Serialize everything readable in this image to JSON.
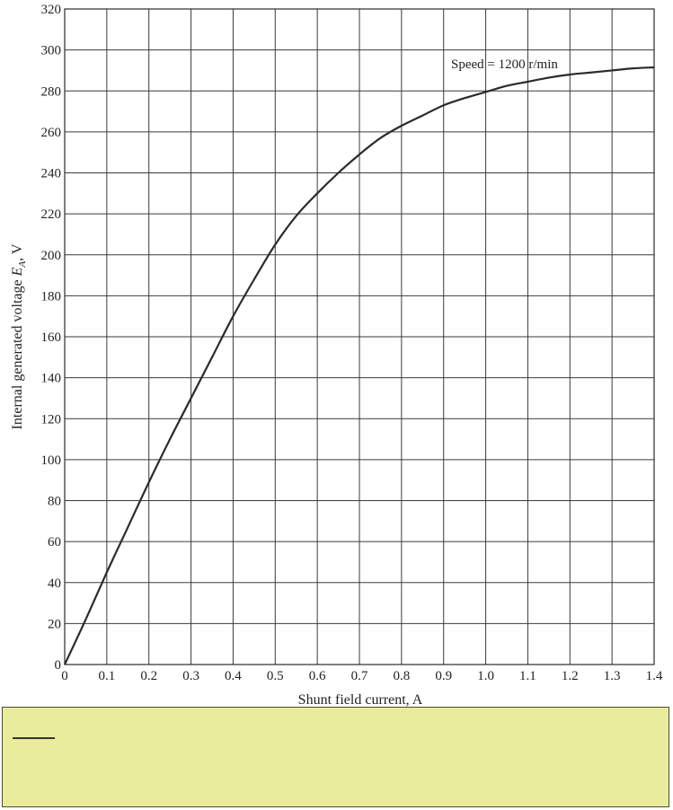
{
  "chart_data": {
    "type": "line",
    "title": "",
    "xlabel": "Shunt field current, A",
    "ylabel_prefix": "Internal generated voltage ",
    "ylabel_symbol": "E",
    "ylabel_subscript": "A",
    "ylabel_suffix": ", V",
    "xlim": [
      0,
      1.4
    ],
    "ylim": [
      0,
      320
    ],
    "x_ticks": [
      0,
      0.1,
      0.2,
      0.3,
      0.4,
      0.5,
      0.6,
      0.7,
      0.8,
      0.9,
      1.0,
      1.1,
      1.2,
      1.3,
      1.4
    ],
    "x_tick_labels": [
      "0",
      "0.1",
      "0.2",
      "0.3",
      "0.4",
      "0.5",
      "0.6",
      "0.7",
      "0.8",
      "0.9",
      "1.0",
      "1.1",
      "1.2",
      "1.3",
      "1.4"
    ],
    "y_ticks": [
      0,
      20,
      40,
      60,
      80,
      100,
      120,
      140,
      160,
      180,
      200,
      220,
      240,
      260,
      280,
      300,
      320
    ],
    "y_tick_labels": [
      "0",
      "20",
      "40",
      "60",
      "80",
      "100",
      "120",
      "140",
      "160",
      "180",
      "200",
      "220",
      "240",
      "260",
      "280",
      "300",
      "320"
    ],
    "grid": true,
    "legend": "none",
    "annotation": "Speed = 1200 r/min",
    "line_color": "#2b2b2b",
    "series": [
      {
        "x": [
          0,
          0.05,
          0.1,
          0.15,
          0.2,
          0.25,
          0.3,
          0.35,
          0.4,
          0.45,
          0.5,
          0.55,
          0.6,
          0.65,
          0.7,
          0.75,
          0.8,
          0.85,
          0.9,
          0.95,
          1.0,
          1.05,
          1.1,
          1.15,
          1.2,
          1.25,
          1.3,
          1.35,
          1.4
        ],
        "y": [
          0,
          22,
          45,
          67,
          89,
          110,
          130,
          150,
          170,
          188,
          205,
          219,
          230,
          240,
          249,
          257,
          263,
          268,
          273,
          276.5,
          279.5,
          282.5,
          284.5,
          286.5,
          288,
          289,
          290,
          291,
          291.5
        ]
      }
    ]
  },
  "note": {
    "text": ""
  }
}
